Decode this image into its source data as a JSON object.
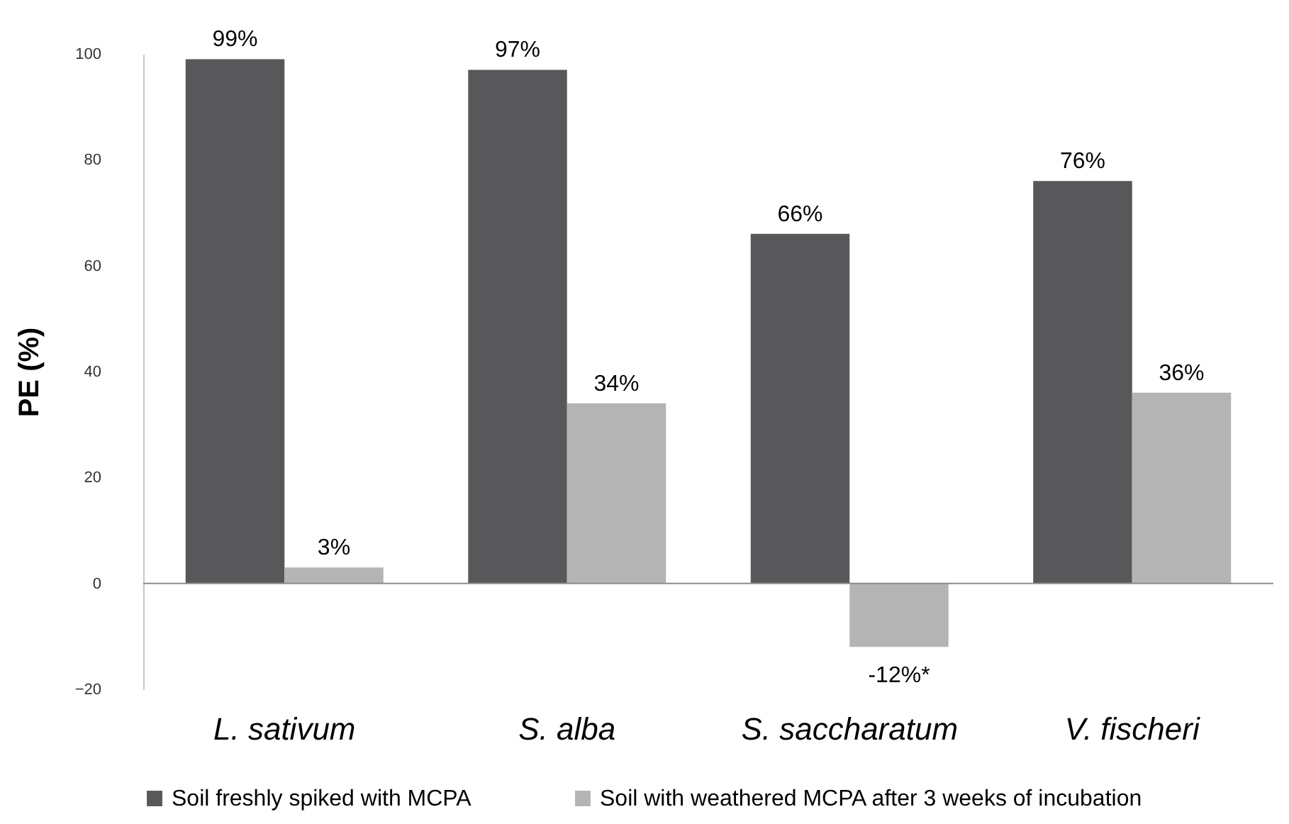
{
  "chart_data": {
    "type": "bar",
    "ylabel": "PE (%)",
    "categories": [
      "L. sativum",
      "S. alba",
      "S. saccharatum",
      "V. fischeri"
    ],
    "series": [
      {
        "name": "Soil freshly spiked with MCPA",
        "color": "#58585a",
        "values": [
          99,
          97,
          66,
          76
        ],
        "value_labels": [
          "99%",
          "97%",
          "66%",
          "76%"
        ]
      },
      {
        "name": "Soil with weathered MCPA after 3 weeks of incubation",
        "color": "#b4b4b4",
        "values": [
          3,
          34,
          -12,
          36
        ],
        "value_labels": [
          "3%",
          "34%",
          "-12%*",
          "36%"
        ]
      }
    ],
    "ylim": [
      -20,
      100
    ],
    "yticks": [
      -20,
      0,
      20,
      40,
      60,
      80,
      100
    ],
    "grid": false,
    "legend": "bottom",
    "ref_lines": [
      {
        "axis": "y",
        "value": 0,
        "color": "#8c8c8c"
      }
    ]
  }
}
